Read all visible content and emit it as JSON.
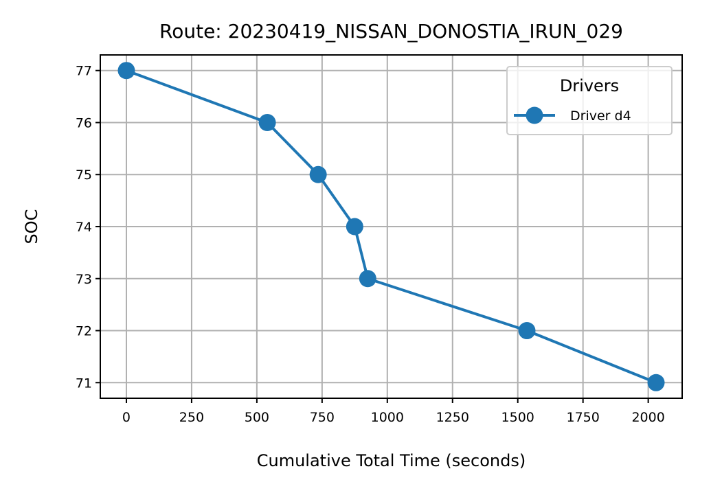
{
  "chart_data": {
    "type": "line",
    "title": "Route: 20230419_NISSAN_DONOSTIA_IRUN_029",
    "xlabel": "Cumulative Total Time (seconds)",
    "ylabel": "SOC",
    "xlim": [
      -100,
      2130
    ],
    "ylim": [
      70.7,
      77.3
    ],
    "xticks": [
      0,
      250,
      500,
      750,
      1000,
      1250,
      1500,
      1750,
      2000
    ],
    "yticks": [
      71,
      72,
      73,
      74,
      75,
      76,
      77
    ],
    "grid": true,
    "legend": {
      "title": "Drivers",
      "placement": "top-right"
    },
    "series": [
      {
        "name": "Driver d4",
        "color": "#1f77b4",
        "marker": "circle",
        "x": [
          0,
          540,
          735,
          875,
          925,
          1535,
          2030
        ],
        "y": [
          77,
          76,
          75,
          74,
          73,
          72,
          71
        ]
      }
    ]
  }
}
